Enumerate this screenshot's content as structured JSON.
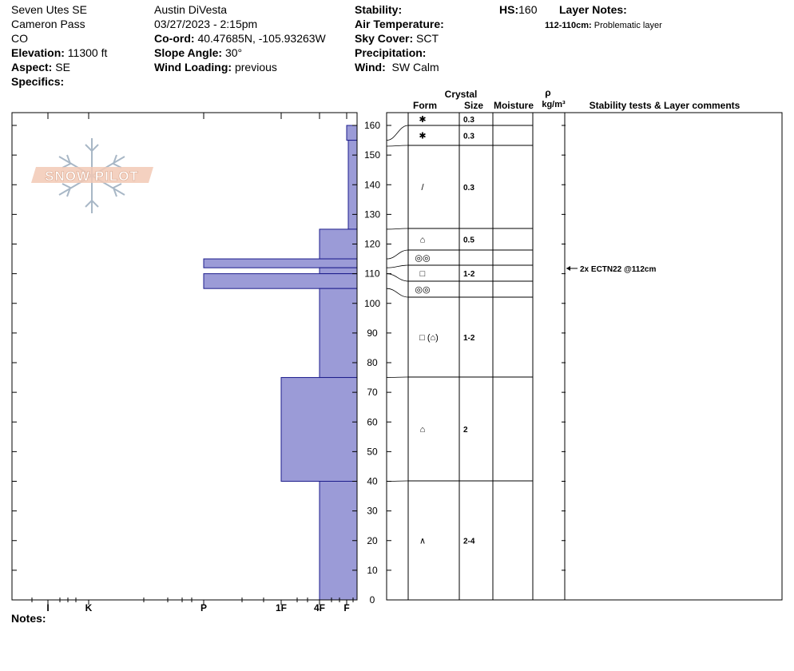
{
  "header": {
    "location": "Seven Utes SE",
    "area": "Cameron Pass",
    "state": "CO",
    "elevation_label": "Elevation:",
    "elevation": "11300 ft",
    "aspect_label": "Aspect:",
    "aspect": "SE",
    "specifics_label": "Specifics:",
    "observer": "Austin DiVesta",
    "datetime": "03/27/2023 - 2:15pm",
    "coord_label": "Co-ord:",
    "coord": "40.47685N, -105.93263W",
    "slope_label": "Slope Angle:",
    "slope": "30°",
    "wind_loading_label": "Wind Loading:",
    "wind_loading": "previous",
    "stability_label": "Stability:",
    "air_temp_label": "Air Temperature:",
    "sky_cover_label": "Sky Cover:",
    "sky_cover": "SCT",
    "precip_label": "Precipitation:",
    "wind_label": "Wind:",
    "wind": "SW Calm",
    "hs_label": "HS:",
    "hs": "160",
    "layer_notes_label": "Layer Notes:",
    "layer_note_range": "112-110cm:",
    "layer_note_text": "Problematic layer",
    "notes_label": "Notes:"
  },
  "logo": {
    "text": "SNOW PILOT"
  },
  "columns": {
    "crystal": "Crystal",
    "form": "Form",
    "size": "Size",
    "moisture": "Moisture",
    "rho": "ρ",
    "density_unit": "kg/m³",
    "stability": "Stability tests & Layer comments"
  },
  "chart_data": {
    "type": "snow-profile",
    "depth_axis": {
      "min": 0,
      "max": 160,
      "step": 10,
      "unit": "cm"
    },
    "hardness_scale": [
      "I",
      "K",
      "P",
      "1F",
      "4F",
      "F"
    ],
    "hardness_layers": [
      {
        "top": 160,
        "bottom": 155,
        "hardness": "F"
      },
      {
        "top": 155,
        "bottom": 125,
        "hardness": "F-"
      },
      {
        "top": 125,
        "bottom": 115,
        "hardness": "4F"
      },
      {
        "top": 115,
        "bottom": 112,
        "hardness": "P"
      },
      {
        "top": 112,
        "bottom": 110,
        "hardness": "4F"
      },
      {
        "top": 110,
        "bottom": 105,
        "hardness": "P"
      },
      {
        "top": 105,
        "bottom": 75,
        "hardness": "4F"
      },
      {
        "top": 75,
        "bottom": 40,
        "hardness": "1F"
      },
      {
        "top": 40,
        "bottom": 0,
        "hardness": "4F"
      }
    ],
    "crystal_layers": [
      {
        "top": 160,
        "bottom": 155,
        "form": "PP",
        "size": "0.3"
      },
      {
        "top": 155,
        "bottom": 153,
        "form": "PP",
        "size": "0.3"
      },
      {
        "top": 153,
        "bottom": 125,
        "form": "DF",
        "size": "0.3"
      },
      {
        "top": 125,
        "bottom": 115,
        "form": "FCxr",
        "size": "0.5"
      },
      {
        "top": 115,
        "bottom": 112,
        "form": "MF",
        "size": ""
      },
      {
        "top": 112,
        "bottom": 110,
        "form": "FC",
        "size": "1-2"
      },
      {
        "top": 110,
        "bottom": 105,
        "form": "MF",
        "size": ""
      },
      {
        "top": 105,
        "bottom": 75,
        "form": "FC (FCxr)",
        "size": "1-2"
      },
      {
        "top": 75,
        "bottom": 40,
        "form": "FCxr",
        "size": "2"
      },
      {
        "top": 40,
        "bottom": 0,
        "form": "DH",
        "size": "2-4"
      }
    ],
    "stability_tests": [
      {
        "depth": 112,
        "label": "2x ECTN22 @112cm"
      }
    ]
  }
}
